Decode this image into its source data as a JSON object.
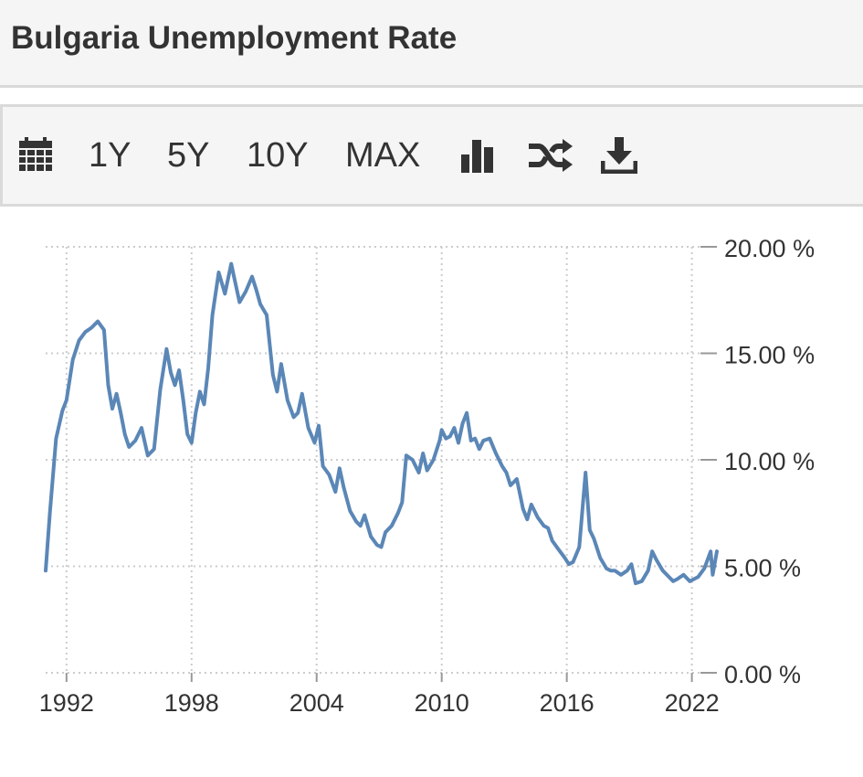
{
  "header": {
    "title": "Bulgaria Unemployment Rate"
  },
  "toolbar": {
    "items": [
      {
        "label": "",
        "icon": "calendar-icon"
      },
      {
        "label": "1Y"
      },
      {
        "label": "5Y"
      },
      {
        "label": "10Y"
      },
      {
        "label": "MAX"
      },
      {
        "label": "",
        "icon": "bar-chart-icon"
      },
      {
        "label": "",
        "icon": "shuffle-icon"
      },
      {
        "label": "",
        "icon": "download-icon"
      }
    ]
  },
  "colors": {
    "line": "#5b87b7",
    "grid": "#cccccc",
    "axis_text": "#333333",
    "header_bg": "#f5f5f5"
  },
  "chart_data": {
    "type": "line",
    "title": "",
    "xlabel": "",
    "ylabel": "",
    "x_ticks": [
      "1992",
      "1998",
      "2004",
      "2010",
      "2016",
      "2022"
    ],
    "y_ticks": [
      "0.00 %",
      "5.00 %",
      "10.00 %",
      "15.00 %",
      "20.00 %"
    ],
    "xlim": [
      1991,
      2023.2
    ],
    "ylim": [
      0,
      20
    ],
    "grid": true,
    "y_axis_side": "right",
    "series": [
      {
        "name": "",
        "x": [
          1991.0,
          1991.2,
          1991.5,
          1991.8,
          1992.0,
          1992.3,
          1992.6,
          1992.9,
          1993.2,
          1993.5,
          1993.8,
          1994.0,
          1994.2,
          1994.4,
          1994.6,
          1994.8,
          1995.0,
          1995.3,
          1995.6,
          1995.9,
          1996.2,
          1996.5,
          1996.8,
          1997.0,
          1997.2,
          1997.4,
          1997.6,
          1997.8,
          1998.0,
          1998.2,
          1998.4,
          1998.6,
          1998.8,
          1999.0,
          1999.3,
          1999.6,
          1999.9,
          2000.1,
          2000.3,
          2000.6,
          2000.9,
          2001.1,
          2001.3,
          2001.6,
          2001.9,
          2002.1,
          2002.3,
          2002.6,
          2002.9,
          2003.1,
          2003.3,
          2003.6,
          2003.9,
          2004.1,
          2004.3,
          2004.6,
          2004.9,
          2005.1,
          2005.3,
          2005.6,
          2005.9,
          2006.1,
          2006.3,
          2006.6,
          2006.9,
          2007.1,
          2007.3,
          2007.6,
          2007.9,
          2008.1,
          2008.3,
          2008.6,
          2008.9,
          2009.1,
          2009.3,
          2009.6,
          2009.9,
          2010.0,
          2010.2,
          2010.4,
          2010.6,
          2010.8,
          2011.0,
          2011.2,
          2011.4,
          2011.6,
          2011.8,
          2012.0,
          2012.3,
          2012.6,
          2012.9,
          2013.1,
          2013.3,
          2013.6,
          2013.9,
          2014.1,
          2014.3,
          2014.6,
          2014.9,
          2015.1,
          2015.3,
          2015.6,
          2015.9,
          2016.1,
          2016.3,
          2016.6,
          2016.9,
          2017.1,
          2017.3,
          2017.6,
          2017.9,
          2018.1,
          2018.3,
          2018.6,
          2018.9,
          2019.1,
          2019.3,
          2019.6,
          2019.9,
          2020.1,
          2020.3,
          2020.6,
          2020.9,
          2021.1,
          2021.3,
          2021.6,
          2021.9,
          2022.1,
          2022.3,
          2022.6,
          2022.9,
          2023.0,
          2023.2
        ],
        "y": [
          4.8,
          7.5,
          11.0,
          12.3,
          12.8,
          14.7,
          15.6,
          16.0,
          16.2,
          16.5,
          16.1,
          13.5,
          12.4,
          13.1,
          12.2,
          11.2,
          10.6,
          10.9,
          11.5,
          10.2,
          10.5,
          13.3,
          15.2,
          14.1,
          13.5,
          14.2,
          12.8,
          11.2,
          10.8,
          12.2,
          13.2,
          12.6,
          14.3,
          16.8,
          18.8,
          17.8,
          19.2,
          18.3,
          17.4,
          17.9,
          18.6,
          18.0,
          17.3,
          16.8,
          14.0,
          13.2,
          14.5,
          12.8,
          12.0,
          12.2,
          13.1,
          11.5,
          10.8,
          11.6,
          9.7,
          9.3,
          8.5,
          9.6,
          8.7,
          7.6,
          7.1,
          6.9,
          7.4,
          6.4,
          6.0,
          5.9,
          6.6,
          6.9,
          7.5,
          8.0,
          10.2,
          10.0,
          9.4,
          10.3,
          9.5,
          10.0,
          10.9,
          11.4,
          11.0,
          11.1,
          11.5,
          10.8,
          11.7,
          12.2,
          10.9,
          11.0,
          10.5,
          10.9,
          11.0,
          10.3,
          9.7,
          9.4,
          8.8,
          9.1,
          7.7,
          7.2,
          7.9,
          7.3,
          6.9,
          6.8,
          6.2,
          5.8,
          5.4,
          5.1,
          5.2,
          5.9,
          9.4,
          6.7,
          6.3,
          5.4,
          4.9,
          4.8,
          4.8,
          4.6,
          4.8,
          5.1,
          4.2,
          4.3,
          4.8,
          5.7,
          5.3,
          4.8,
          4.5,
          4.3,
          4.4,
          4.6,
          4.3,
          4.4,
          4.5,
          4.9,
          5.7,
          4.6,
          5.7
        ]
      }
    ]
  }
}
